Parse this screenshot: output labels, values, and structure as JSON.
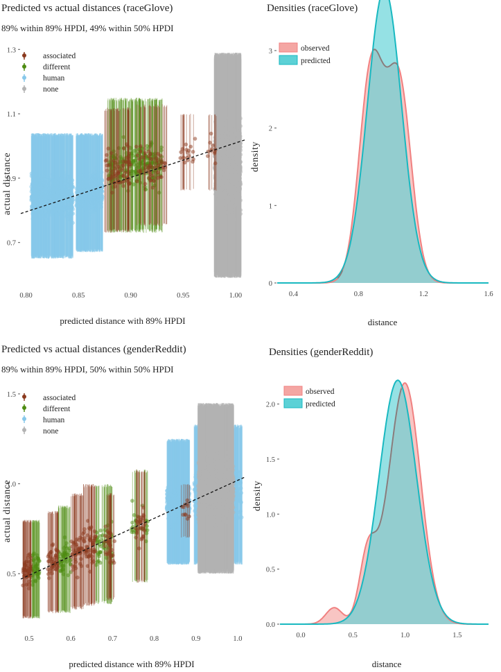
{
  "colors": {
    "associated": "#8b3a1e",
    "different": "#4e8c12",
    "human": "#87c8ea",
    "none": "#b3b3b3",
    "observed_fill": "#f4a6a3",
    "observed_line": "#f08080",
    "predicted_fill": "#5cd1d6",
    "predicted_line": "#18b8c0",
    "overlap_line": "#7f7f7f"
  },
  "chart_data": [
    {
      "id": "race-scatter",
      "type": "scatter",
      "title": "Predicted vs actual distances (raceGlove)",
      "subtitle": "89% within 89% HPDI, 49% within 50% HPDI",
      "xlabel": "predicted distance with 89% HPDI",
      "ylabel": "actual distance",
      "xlim": [
        0.795,
        1.01
      ],
      "ylim": [
        0.57,
        1.32
      ],
      "xticks": [
        "0.80",
        "0.85",
        "0.90",
        "0.95",
        "1.00"
      ],
      "xtick_values": [
        0.8,
        0.85,
        0.9,
        0.95,
        1.0
      ],
      "yticks": [
        "0.7",
        "0.9",
        "1.1",
        "1.3"
      ],
      "ytick_values": [
        0.7,
        0.9,
        1.1,
        1.3
      ],
      "legend": [
        "associated",
        "different",
        "human",
        "none"
      ],
      "legend_position": "top-left",
      "regression": {
        "x": [
          0.795,
          1.01
        ],
        "y": [
          0.79,
          1.02
        ]
      },
      "clusters": [
        {
          "group": "human",
          "xmin": 0.805,
          "xmax": 0.845,
          "ymin": 0.65,
          "ymax": 1.04,
          "center": 0.83,
          "n": 260
        },
        {
          "group": "human",
          "xmin": 0.848,
          "xmax": 0.873,
          "ymin": 0.67,
          "ymax": 1.04,
          "center": 0.855,
          "n": 160
        },
        {
          "group": "associated",
          "xmin": 0.875,
          "xmax": 0.9,
          "ymin": 0.73,
          "ymax": 1.12,
          "center": 0.895,
          "n": 45
        },
        {
          "group": "different",
          "xmin": 0.878,
          "xmax": 0.93,
          "ymin": 0.73,
          "ymax": 1.15,
          "center": 0.9,
          "n": 140
        },
        {
          "group": "associated",
          "xmin": 0.905,
          "xmax": 0.935,
          "ymin": 0.75,
          "ymax": 1.13,
          "center": 0.925,
          "n": 35
        },
        {
          "group": "associated",
          "xmin": 0.947,
          "xmax": 0.962,
          "ymin": 0.86,
          "ymax": 1.1,
          "center": 0.955,
          "n": 12
        },
        {
          "group": "associated",
          "xmin": 0.972,
          "xmax": 0.982,
          "ymin": 0.86,
          "ymax": 1.1,
          "center": 0.976,
          "n": 8
        },
        {
          "group": "none",
          "xmin": 0.98,
          "xmax": 1.005,
          "ymin": 0.59,
          "ymax": 1.29,
          "center": 0.997,
          "n": 420
        }
      ]
    },
    {
      "id": "race-density",
      "type": "area",
      "title": "Densities (raceGlove)",
      "xlabel": "distance",
      "ylabel": "density",
      "xlim": [
        0.3,
        1.6
      ],
      "ylim": [
        0,
        3.25
      ],
      "xticks": [
        "0.4",
        "0.8",
        "1.2",
        "1.6"
      ],
      "xtick_values": [
        0.4,
        0.8,
        1.2,
        1.6
      ],
      "yticks": [
        "0",
        "1",
        "2",
        "3"
      ],
      "ytick_values": [
        0,
        1,
        2,
        3
      ],
      "legend": [
        "observed",
        "predicted"
      ],
      "legend_position": "top-left",
      "series": [
        {
          "name": "observed",
          "components": [
            [
              0.88,
              0.075,
              0.52
            ],
            [
              1.05,
              0.075,
              0.48
            ]
          ]
        },
        {
          "name": "predicted",
          "components": [
            [
              0.96,
              0.105,
              1.0
            ]
          ]
        }
      ]
    },
    {
      "id": "gender-scatter",
      "type": "scatter",
      "title": "Predicted vs actual distances (genderReddit)",
      "subtitle": "89% within 89% HPDI, 50% within 50% HPDI",
      "xlabel": "predicted distance with 89% HPDI",
      "ylabel": "actual distance",
      "xlim": [
        0.48,
        1.02
      ],
      "ylim": [
        0.2,
        1.55
      ],
      "xticks": [
        "0.5",
        "0.6",
        "0.7",
        "0.8",
        "0.9",
        "1.0"
      ],
      "xtick_values": [
        0.5,
        0.6,
        0.7,
        0.8,
        0.9,
        1.0
      ],
      "yticks": [
        "0.5",
        "1.0",
        "1.5"
      ],
      "ytick_values": [
        0.5,
        1.0,
        1.5
      ],
      "legend": [
        "associated",
        "different",
        "human",
        "none"
      ],
      "legend_position": "top-left",
      "regression": {
        "x": [
          0.48,
          1.02
        ],
        "y": [
          0.47,
          1.04
        ]
      },
      "clusters": [
        {
          "group": "associated",
          "xmin": 0.485,
          "xmax": 0.505,
          "ymin": 0.25,
          "ymax": 0.8,
          "center": 0.495,
          "n": 35
        },
        {
          "group": "different",
          "xmin": 0.505,
          "xmax": 0.525,
          "ymin": 0.25,
          "ymax": 0.8,
          "center": 0.515,
          "n": 30
        },
        {
          "group": "associated",
          "xmin": 0.545,
          "xmax": 0.57,
          "ymin": 0.28,
          "ymax": 0.85,
          "center": 0.555,
          "n": 30
        },
        {
          "group": "different",
          "xmin": 0.57,
          "xmax": 0.6,
          "ymin": 0.28,
          "ymax": 0.88,
          "center": 0.585,
          "n": 35
        },
        {
          "group": "associated",
          "xmin": 0.6,
          "xmax": 0.63,
          "ymin": 0.3,
          "ymax": 0.95,
          "center": 0.615,
          "n": 30
        },
        {
          "group": "associated",
          "xmin": 0.63,
          "xmax": 0.66,
          "ymin": 0.32,
          "ymax": 1.0,
          "center": 0.645,
          "n": 35
        },
        {
          "group": "different",
          "xmin": 0.66,
          "xmax": 0.7,
          "ymin": 0.33,
          "ymax": 1.0,
          "center": 0.68,
          "n": 30
        },
        {
          "group": "associated",
          "xmin": 0.68,
          "xmax": 0.705,
          "ymin": 0.35,
          "ymax": 0.95,
          "center": 0.69,
          "n": 20
        },
        {
          "group": "different",
          "xmin": 0.745,
          "xmax": 0.785,
          "ymin": 0.45,
          "ymax": 1.08,
          "center": 0.765,
          "n": 20
        },
        {
          "group": "associated",
          "xmin": 0.755,
          "xmax": 0.78,
          "ymin": 0.45,
          "ymax": 1.08,
          "center": 0.77,
          "n": 20
        },
        {
          "group": "human",
          "xmin": 0.83,
          "xmax": 0.885,
          "ymin": 0.55,
          "ymax": 1.25,
          "center": 0.86,
          "n": 150
        },
        {
          "group": "human",
          "xmin": 0.895,
          "xmax": 1.01,
          "ymin": 0.55,
          "ymax": 1.33,
          "center": 0.96,
          "n": 200
        },
        {
          "group": "none",
          "xmin": 0.905,
          "xmax": 0.99,
          "ymin": 0.5,
          "ymax": 1.45,
          "center": 0.95,
          "n": 380
        },
        {
          "group": "associated",
          "xmin": 0.865,
          "xmax": 0.885,
          "ymin": 0.7,
          "ymax": 1.0,
          "center": 0.875,
          "n": 8
        }
      ]
    },
    {
      "id": "gender-density",
      "type": "area",
      "title": "Densities (genderReddit)",
      "xlabel": "distance",
      "ylabel": "density",
      "xlim": [
        -0.2,
        1.8
      ],
      "ylim": [
        0,
        2.3
      ],
      "xticks": [
        "0.0",
        "0.5",
        "1.0",
        "1.5"
      ],
      "xtick_values": [
        0.0,
        0.5,
        1.0,
        1.5
      ],
      "yticks": [
        "0.0",
        "0.5",
        "1.0",
        "1.5",
        "2.0"
      ],
      "ytick_values": [
        0.0,
        0.5,
        1.0,
        1.5,
        2.0
      ],
      "legend": [
        "observed",
        "predicted"
      ],
      "legend_position": "top-left",
      "series": [
        {
          "name": "observed",
          "components": [
            [
              1.0,
              0.15,
              0.82
            ],
            [
              0.64,
              0.08,
              0.12
            ],
            [
              0.32,
              0.08,
              0.03
            ],
            [
              0.78,
              0.1,
              0.03
            ]
          ]
        },
        {
          "name": "predicted",
          "components": [
            [
              0.93,
              0.18,
              1.0
            ]
          ]
        }
      ]
    }
  ]
}
